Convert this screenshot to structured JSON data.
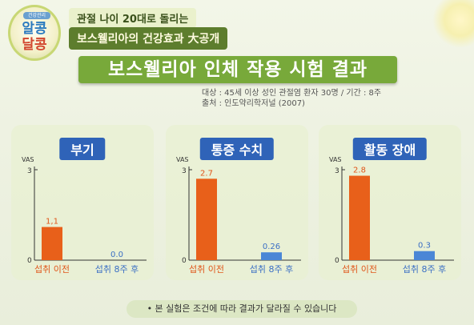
{
  "logo": {
    "line1": "알콩",
    "line2": "달콩",
    "badge": "건강관리"
  },
  "header": {
    "subtitle1": "관절 나이 20대로 돌리는",
    "subtitle2": "보스웰리아의 건강효과 大공개",
    "title": "보스웰리아 인체 작용 시험 결과",
    "meta_line1": "대상 : 45세 이상 성인 관절염 환자 30명 / 기간 : 8주",
    "meta_line2": "출처 : 인도약리학저널 (2007)"
  },
  "note": "• 본 실험은 조건에 따라 결과가 달라질 수 있습니다",
  "colors": {
    "before_bar": "#e8601a",
    "after_bar": "#4a86d6",
    "before_label": "#e0561a",
    "after_label": "#3b6fc4",
    "title_green": "#78a93a"
  },
  "chart_data": [
    {
      "type": "bar",
      "title": "부기",
      "ylabel": "VAS",
      "ylim": [
        0,
        3
      ],
      "yticks": [
        "0",
        "3"
      ],
      "categories": [
        "섭취 이전",
        "섭취 8주 후"
      ],
      "values": [
        1.1,
        0.0
      ],
      "value_labels": [
        "1,1",
        "0.0"
      ]
    },
    {
      "type": "bar",
      "title": "통증 수치",
      "ylabel": "VAS",
      "ylim": [
        0,
        3
      ],
      "yticks": [
        "0",
        "3"
      ],
      "categories": [
        "섭취 이전",
        "섭취 8주 후"
      ],
      "values": [
        2.7,
        0.26
      ],
      "value_labels": [
        "2.7",
        "0.26"
      ]
    },
    {
      "type": "bar",
      "title": "활동 장애",
      "ylabel": "VAS",
      "ylim": [
        0,
        3
      ],
      "yticks": [
        "0",
        "3"
      ],
      "categories": [
        "섭취 이전",
        "섭취 8주 후"
      ],
      "values": [
        2.8,
        0.3
      ],
      "value_labels": [
        "2.8",
        "0.3"
      ]
    }
  ]
}
